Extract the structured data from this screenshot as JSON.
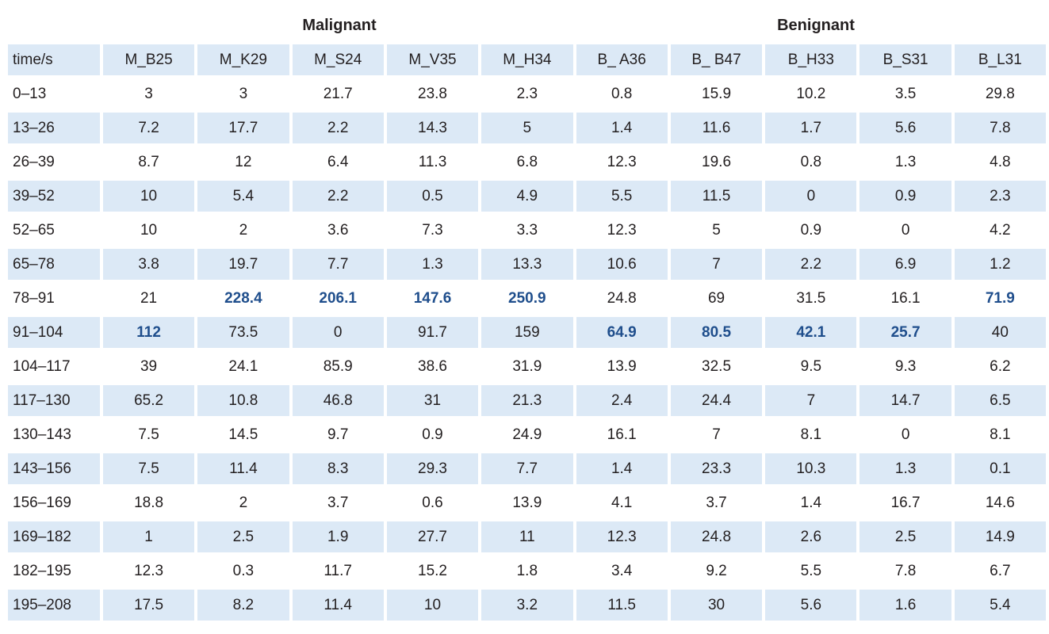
{
  "groups": {
    "malignant": "Malignant",
    "benignant": "Benignant"
  },
  "columns": [
    "time/s",
    "M_B25",
    "M_K29",
    "M_S24",
    "M_V35",
    "M_H34",
    "B_ A36",
    "B_ B47",
    "B_H33",
    "B_S31",
    "B_L31"
  ],
  "rows": [
    [
      "0–13",
      "3",
      "3",
      "21.7",
      "23.8",
      "2.3",
      "0.8",
      "15.9",
      "10.2",
      "3.5",
      "29.8"
    ],
    [
      "13–26",
      "7.2",
      "17.7",
      "2.2",
      "14.3",
      "5",
      "1.4",
      "11.6",
      "1.7",
      "5.6",
      "7.8"
    ],
    [
      "26–39",
      "8.7",
      "12",
      "6.4",
      "11.3",
      "6.8",
      "12.3",
      "19.6",
      "0.8",
      "1.3",
      "4.8"
    ],
    [
      "39–52",
      "10",
      "5.4",
      "2.2",
      "0.5",
      "4.9",
      "5.5",
      "11.5",
      "0",
      "0.9",
      "2.3"
    ],
    [
      "52–65",
      "10",
      "2",
      "3.6",
      "7.3",
      "3.3",
      "12.3",
      "5",
      "0.9",
      "0",
      "4.2"
    ],
    [
      "65–78",
      "3.8",
      "19.7",
      "7.7",
      "1.3",
      "13.3",
      "10.6",
      "7",
      "2.2",
      "6.9",
      "1.2"
    ],
    [
      "78–91",
      "21",
      "228.4",
      "206.1",
      "147.6",
      "250.9",
      "24.8",
      "69",
      "31.5",
      "16.1",
      "71.9"
    ],
    [
      "91–104",
      "112",
      "73.5",
      "0",
      "91.7",
      "159",
      "64.9",
      "80.5",
      "42.1",
      "25.7",
      "40"
    ],
    [
      "104–117",
      "39",
      "24.1",
      "85.9",
      "38.6",
      "31.9",
      "13.9",
      "32.5",
      "9.5",
      "9.3",
      "6.2"
    ],
    [
      "117–130",
      "65.2",
      "10.8",
      "46.8",
      "31",
      "21.3",
      "2.4",
      "24.4",
      "7",
      "14.7",
      "6.5"
    ],
    [
      "130–143",
      "7.5",
      "14.5",
      "9.7",
      "0.9",
      "24.9",
      "16.1",
      "7",
      "8.1",
      "0",
      "8.1"
    ],
    [
      "143–156",
      "7.5",
      "11.4",
      "8.3",
      "29.3",
      "7.7",
      "1.4",
      "23.3",
      "10.3",
      "1.3",
      "0.1"
    ],
    [
      "156–169",
      "18.8",
      "2",
      "3.7",
      "0.6",
      "13.9",
      "4.1",
      "3.7",
      "1.4",
      "16.7",
      "14.6"
    ],
    [
      "169–182",
      "1",
      "2.5",
      "1.9",
      "27.7",
      "11",
      "12.3",
      "24.8",
      "2.6",
      "2.5",
      "14.9"
    ],
    [
      "182–195",
      "12.3",
      "0.3",
      "11.7",
      "15.2",
      "1.8",
      "3.4",
      "9.2",
      "5.5",
      "7.8",
      "6.7"
    ],
    [
      "195–208",
      "17.5",
      "8.2",
      "11.4",
      "10",
      "3.2",
      "11.5",
      "30",
      "5.6",
      "1.6",
      "5.4"
    ]
  ],
  "highlighted_cells": [
    [
      6,
      2
    ],
    [
      6,
      3
    ],
    [
      6,
      4
    ],
    [
      6,
      5
    ],
    [
      6,
      10
    ],
    [
      7,
      1
    ],
    [
      7,
      6
    ],
    [
      7,
      7
    ],
    [
      7,
      8
    ],
    [
      7,
      9
    ]
  ],
  "colors": {
    "row_shade": "#dce9f6",
    "highlight_text": "#1f4e8c",
    "text": "#231f20"
  }
}
